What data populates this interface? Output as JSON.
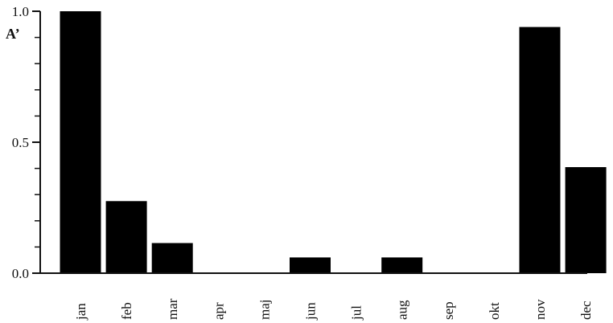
{
  "chart_data": {
    "type": "bar",
    "title": "",
    "xlabel": "",
    "ylabel": "A’",
    "categories": [
      "jan",
      "feb",
      "mar",
      "apr",
      "maj",
      "jun",
      "jul",
      "aug",
      "sep",
      "okt",
      "nov",
      "dec"
    ],
    "values": [
      1.0,
      0.275,
      0.115,
      0.0,
      0.0,
      0.06,
      0.0,
      0.06,
      0.0,
      0.0,
      0.94,
      0.405
    ],
    "ylim": [
      0,
      1.0
    ],
    "y_tick_labels": [
      "0.0",
      "0.5",
      "1.0"
    ],
    "y_minor_ticks": [
      0.1,
      0.2,
      0.3,
      0.4,
      0.6,
      0.7,
      0.8,
      0.9
    ],
    "grid": false,
    "legend": "none",
    "bar_color": "#000000",
    "axis_color": "#111111"
  }
}
